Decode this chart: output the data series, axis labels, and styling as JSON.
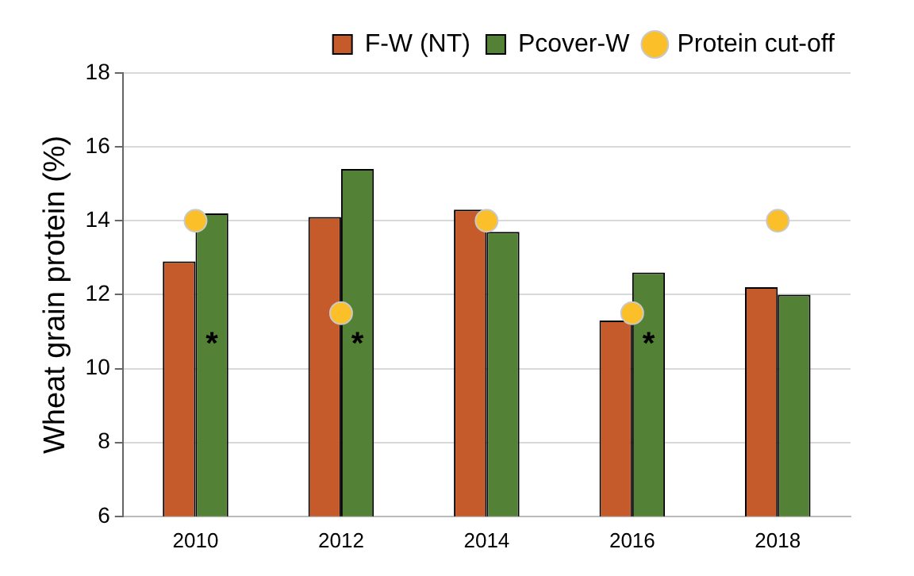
{
  "chart_data": {
    "type": "bar",
    "ylabel": "Wheat grain protein (%)",
    "categories": [
      "2010",
      "2012",
      "2014",
      "2016",
      "2018"
    ],
    "series": [
      {
        "name": "F-W (NT)",
        "color": "#c55a2b",
        "values": [
          12.9,
          14.1,
          14.3,
          11.3,
          12.2
        ]
      },
      {
        "name": "Pcover-W",
        "color": "#538135",
        "values": [
          14.2,
          15.4,
          13.7,
          12.6,
          12.0
        ]
      },
      {
        "name": "Protein cut-off",
        "type": "scatter",
        "color": "#fbbf2a",
        "values": [
          14,
          11.5,
          14,
          11.5,
          14
        ]
      }
    ],
    "ylim": [
      6,
      18
    ],
    "yticks": [
      6,
      8,
      10,
      12,
      14,
      16,
      18
    ],
    "grid": "y",
    "legend": "top",
    "marker": "circle",
    "annotations": [
      {
        "text": "*",
        "x": "2010"
      },
      {
        "text": "*",
        "x": "2012"
      },
      {
        "text": "*",
        "x": "2016"
      }
    ]
  }
}
